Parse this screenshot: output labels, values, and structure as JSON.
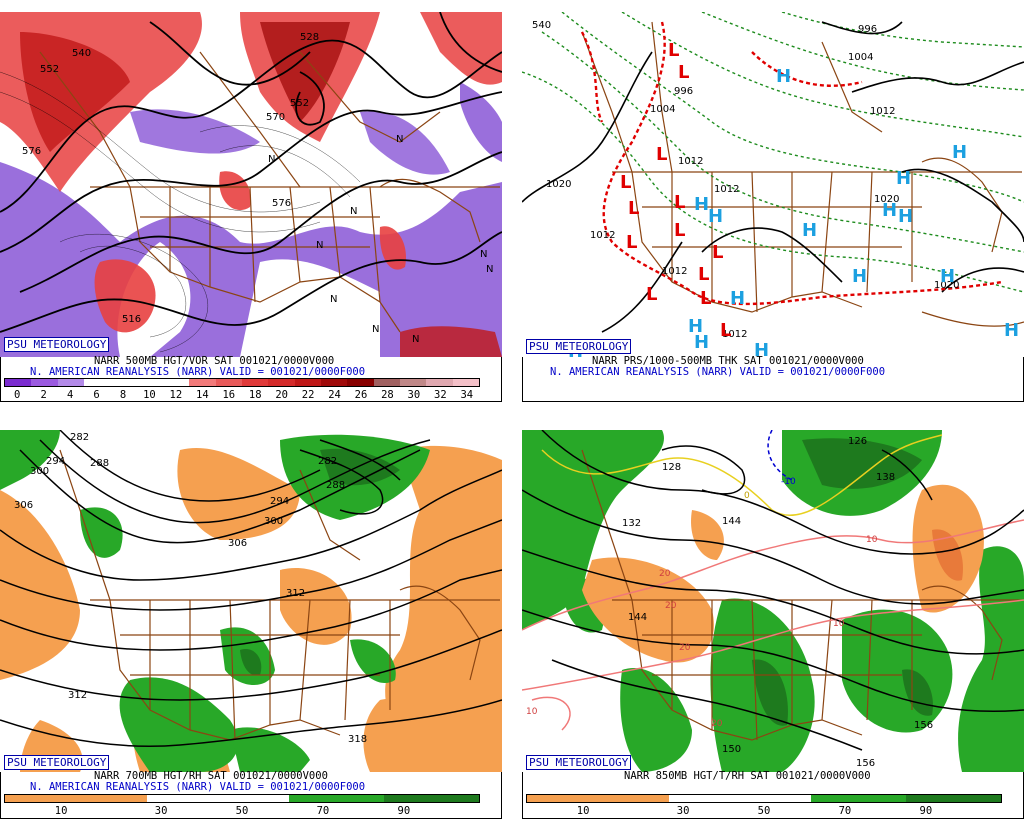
{
  "panels": {
    "p1": {
      "credit": "PSU METEOROLOGY",
      "title_line1": "NARR 500MB HGT/VOR SAT 001021/0000V000",
      "title_line2": "N. AMERICAN REANALYSIS (NARR) VALID = 001021/0000F000",
      "colorbar_ticks": [
        "0",
        "2",
        "4",
        "6",
        "8",
        "10",
        "12",
        "14",
        "16",
        "18",
        "20",
        "22",
        "24",
        "26",
        "28",
        "30",
        "32",
        "34"
      ],
      "colorbar_colors": [
        "#7b2cd0",
        "#9b5ae0",
        "#b38ae8",
        "#ffffff",
        "#ffffff",
        "#ffffff",
        "#ffffff",
        "#f27a7a",
        "#e85a5a",
        "#e03a3a",
        "#d42a2a",
        "#c01818",
        "#a00a0a",
        "#880000",
        "#a06060",
        "#c08888",
        "#e0a8b0",
        "#f4c0c8"
      ],
      "contour_labels": [
        "552",
        "540",
        "528",
        "552",
        "576",
        "576",
        "570",
        "516"
      ],
      "n_labels": [
        "N",
        "N",
        "N",
        "N",
        "N",
        "N",
        "N",
        "N",
        "N"
      ]
    },
    "p2": {
      "credit": "PSU METEOROLOGY",
      "title_line1": "NARR PRS/1000-500MB THK SAT 001021/0000V000",
      "title_line2": "N. AMERICAN REANALYSIS (NARR) VALID = 001021/0000F000",
      "contour_labels": [
        "540",
        "996",
        "1004",
        "1004",
        "1012",
        "1012",
        "1012",
        "1020",
        "1012",
        "996",
        "1020",
        "1012",
        "1020",
        "1012"
      ],
      "low_symbols": [
        "L",
        "L",
        "L",
        "L",
        "L",
        "L",
        "L",
        "L",
        "L",
        "L",
        "L",
        "L",
        "L"
      ],
      "high_symbols": [
        "H",
        "H",
        "H",
        "H",
        "H",
        "H",
        "H",
        "H",
        "H",
        "H",
        "H",
        "H",
        "H",
        "H",
        "H",
        "H"
      ]
    },
    "p3": {
      "credit": "PSU METEOROLOGY",
      "title_line1": "NARR 700MB HGT/RH SAT 001021/0000V000",
      "title_line2": "N. AMERICAN REANALYSIS (NARR) VALID = 001021/0000F000",
      "colorbar_ticks": [
        "10",
        "30",
        "50",
        "70",
        "90"
      ],
      "contour_labels": [
        "282",
        "294",
        "288",
        "300",
        "306",
        "282",
        "288",
        "294",
        "300",
        "306",
        "312",
        "312",
        "318"
      ]
    },
    "p4": {
      "credit": "PSU METEOROLOGY",
      "title_line1": "NARR 850MB HGT/T/RH SAT 001021/0000V000",
      "colorbar_ticks": [
        "10",
        "30",
        "50",
        "70",
        "90"
      ],
      "contour_labels": [
        "126",
        "132",
        "128",
        "144",
        "144",
        "150",
        "156",
        "156",
        "138"
      ],
      "temp_labels": [
        "-10",
        "0",
        "10",
        "20",
        "20",
        "20",
        "10",
        "10",
        "20"
      ]
    }
  },
  "colors": {
    "map_border": "#8b4513",
    "dry": "#f5a050",
    "moist": "#28a828",
    "moist_dark": "#1e7a1e",
    "cyclonic_red": "#e84040",
    "anticyclonic_purple": "#8f5fd8",
    "low_red": "#e00000",
    "high_blue": "#1ca0e0",
    "credit_blue": "#0000a8"
  }
}
